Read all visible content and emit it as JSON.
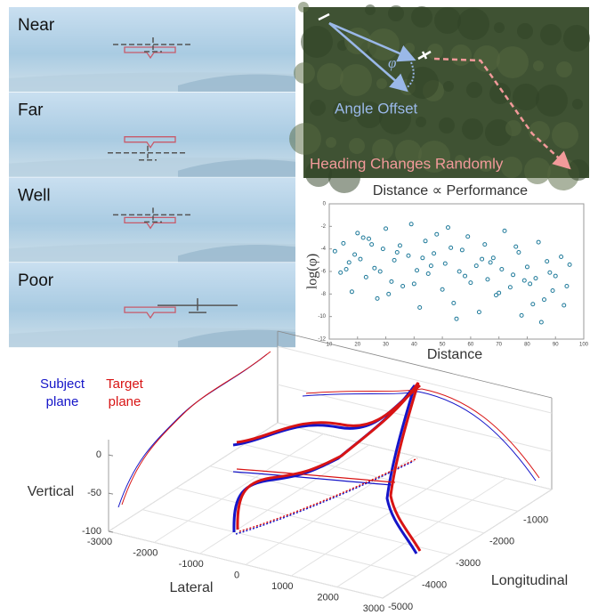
{
  "panels": [
    {
      "label": "Near"
    },
    {
      "label": "Far"
    },
    {
      "label": "Well"
    },
    {
      "label": "Poor"
    }
  ],
  "map": {
    "symbol": "φ",
    "angle_label": "Angle Offset",
    "heading_label": "Heading Changes Randomly"
  },
  "chart_data": [
    {
      "type": "scatter",
      "title": "Distance ∝ Performance",
      "x_label": "Distance",
      "y_label": "log(φ)",
      "color": "#1f7a9a",
      "xlim": [
        10,
        100
      ],
      "xticks": [
        10,
        20,
        30,
        40,
        50,
        60,
        70,
        80,
        90,
        100
      ],
      "ylim": [
        -12,
        0
      ],
      "yticks": [
        0,
        -2,
        -4,
        -6,
        -8,
        -10,
        -12
      ],
      "x": [
        12,
        14,
        15,
        17,
        18,
        20,
        21,
        23,
        24,
        26,
        27,
        29,
        30,
        32,
        33,
        35,
        36,
        38,
        39,
        41,
        42,
        44,
        45,
        47,
        48,
        50,
        51,
        53,
        54,
        56,
        57,
        59,
        60,
        62,
        63,
        65,
        66,
        68,
        69,
        71,
        72,
        74,
        75,
        77,
        78,
        80,
        81,
        83,
        84,
        86,
        87,
        89,
        90,
        92,
        93,
        95,
        16,
        22,
        28,
        34,
        40,
        46,
        52,
        58,
        64,
        70,
        76,
        82,
        88,
        94,
        19,
        31,
        43,
        55,
        67,
        79,
        85,
        25
      ],
      "y": [
        -4.2,
        -6.1,
        -3.5,
        -5.2,
        -7.8,
        -2.6,
        -4.9,
        -6.5,
        -3.1,
        -5.7,
        -8.4,
        -4.0,
        -2.2,
        -6.9,
        -5.0,
        -3.7,
        -7.3,
        -4.6,
        -1.8,
        -5.9,
        -9.2,
        -3.3,
        -6.2,
        -4.4,
        -2.7,
        -7.6,
        -5.3,
        -3.9,
        -8.8,
        -6.0,
        -4.1,
        -2.9,
        -7.0,
        -5.5,
        -9.6,
        -3.6,
        -6.7,
        -4.8,
        -8.1,
        -5.8,
        -2.4,
        -7.4,
        -6.3,
        -4.3,
        -9.9,
        -5.6,
        -7.1,
        -6.6,
        -3.4,
        -8.5,
        -5.1,
        -7.7,
        -6.4,
        -4.7,
        -9.0,
        -5.4,
        -5.8,
        -3.0,
        -6.0,
        -4.3,
        -7.1,
        -5.5,
        -2.1,
        -6.4,
        -4.9,
        -7.9,
        -3.8,
        -8.9,
        -6.1,
        -7.3,
        -4.5,
        -8.0,
        -4.8,
        -10.2,
        -5.2,
        -6.8,
        -10.5,
        -3.6
      ]
    },
    {
      "type": "line3d",
      "x_label": "Lateral",
      "y_label": "Longitudinal",
      "z_label": "Vertical",
      "xlim": [
        -3000,
        3000
      ],
      "xticks": [
        -3000,
        -2000,
        -1000,
        0,
        1000,
        2000,
        3000
      ],
      "ylim": [
        -5000,
        0
      ],
      "yticks": [
        -1000,
        -2000,
        -3000,
        -4000,
        -5000
      ],
      "zlim": [
        -100,
        20
      ],
      "zticks": [
        0,
        -50,
        -100
      ],
      "series": [
        {
          "name": "Subject plane",
          "color": "#1515c8"
        },
        {
          "name": "Target plane",
          "color": "#d81414"
        }
      ]
    }
  ]
}
